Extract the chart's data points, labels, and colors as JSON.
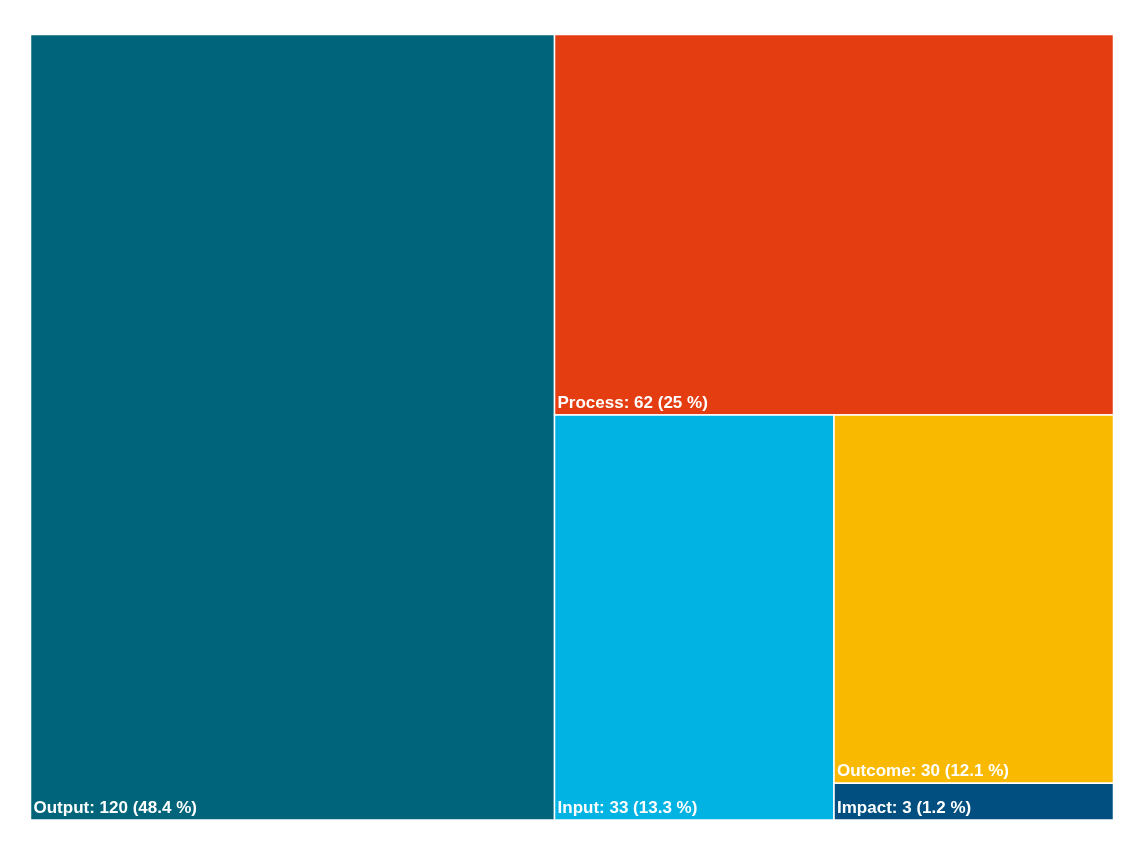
{
  "chart_data": {
    "type": "other",
    "categories": [
      "Output",
      "Process",
      "Input",
      "Outcome",
      "Impact"
    ],
    "values": [
      120,
      62,
      33,
      30,
      3
    ],
    "value_labels": [
      ": 120 (48.4 %)",
      ": 62 (25 %)",
      ": 33 (13.3 %)",
      ": 30 (12.1 %)",
      ": 3 (1.2 %)"
    ],
    "colors": [
      "#00657a",
      "#e43d12",
      "#00b3e3",
      "#f9b900",
      "#004f80"
    ]
  }
}
